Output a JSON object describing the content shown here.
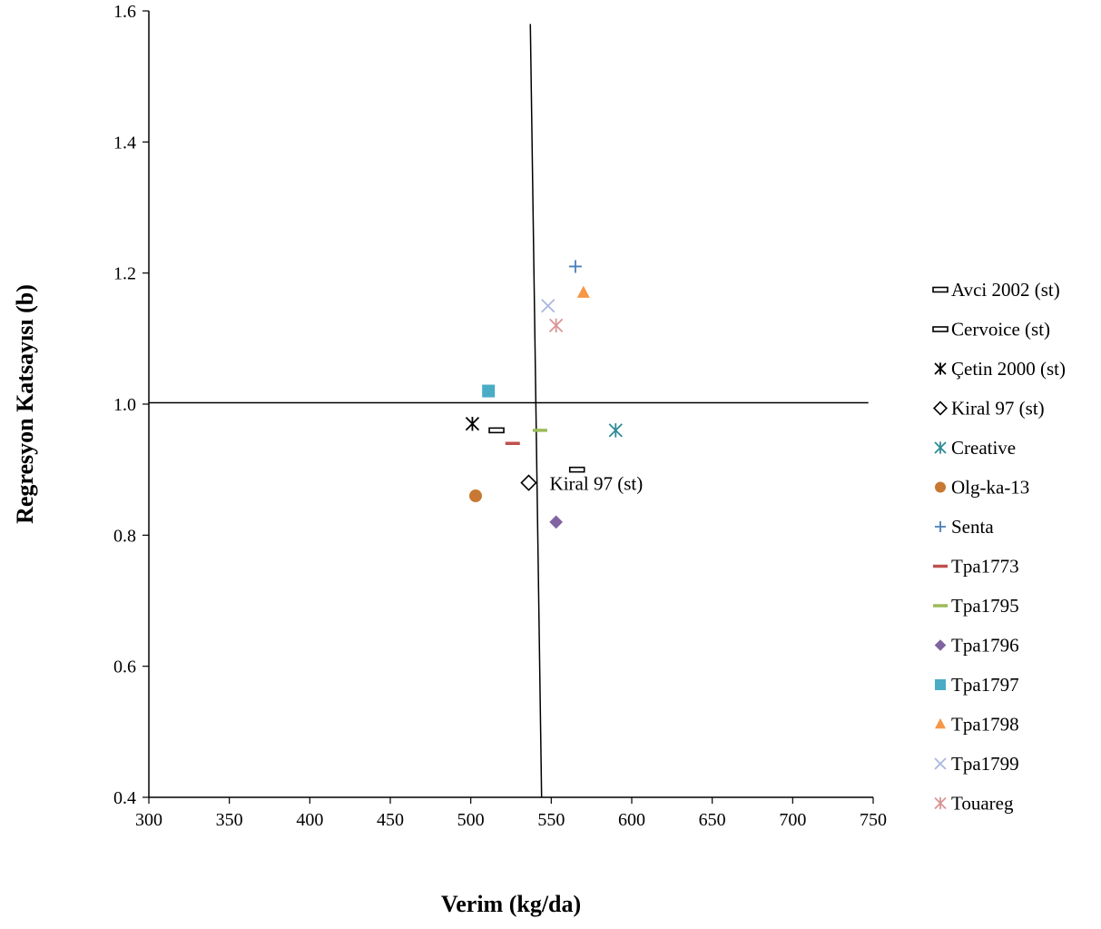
{
  "chart_data": {
    "type": "scatter",
    "xlabel": "Verim (kg/da)",
    "ylabel": "Regresyon Katsayısı (b)",
    "xlim": [
      300,
      750
    ],
    "ylim": [
      0.4,
      1.6
    ],
    "xticks": [
      "300",
      "350",
      "400",
      "450",
      "500",
      "550",
      "600",
      "650",
      "700",
      "750"
    ],
    "yticks": [
      "0.4",
      "0.6",
      "0.8",
      "1.0",
      "1.2",
      "1.4",
      "1.6"
    ],
    "grid": false,
    "legend_position": "right",
    "reference_lines": [
      {
        "from": [
          300,
          1.002
        ],
        "to": [
          747,
          1.002
        ]
      },
      {
        "from": [
          537,
          1.58
        ],
        "to": [
          544,
          0.4
        ]
      }
    ],
    "series": [
      {
        "name": "Avci 2002 (st)",
        "marker": "open-dash",
        "color": "#000000",
        "points": [
          [
            566,
            0.9
          ]
        ]
      },
      {
        "name": "Cervoice (st)",
        "marker": "open-dash",
        "color": "#000000",
        "points": [
          [
            516,
            0.96
          ]
        ]
      },
      {
        "name": "Çetin 2000 (st)",
        "marker": "asterisk",
        "color": "#000000",
        "points": [
          [
            501,
            0.97
          ]
        ]
      },
      {
        "name": "Kiral 97 (st)",
        "marker": "open-diamond",
        "color": "#000000",
        "points": [
          [
            536,
            0.88
          ]
        ]
      },
      {
        "name": "Creative",
        "marker": "asterisk",
        "color": "#2E8B96",
        "points": [
          [
            590,
            0.96
          ]
        ]
      },
      {
        "name": "Olg-ka-13",
        "marker": "circle",
        "color": "#C87832",
        "points": [
          [
            503,
            0.86
          ]
        ]
      },
      {
        "name": "Senta",
        "marker": "plus",
        "color": "#4A7EBB",
        "points": [
          [
            565,
            1.21
          ]
        ]
      },
      {
        "name": "Tpa1773",
        "marker": "dash",
        "color": "#C0504D",
        "points": [
          [
            526,
            0.94
          ]
        ]
      },
      {
        "name": "Tpa1795",
        "marker": "dash",
        "color": "#9BBB59",
        "points": [
          [
            543,
            0.96
          ]
        ]
      },
      {
        "name": "Tpa1796",
        "marker": "diamond",
        "color": "#8064A2",
        "points": [
          [
            553,
            0.82
          ]
        ]
      },
      {
        "name": "Tpa1797",
        "marker": "square",
        "color": "#4BACC6",
        "points": [
          [
            511,
            1.02
          ]
        ]
      },
      {
        "name": "Tpa1798",
        "marker": "triangle",
        "color": "#F79646",
        "points": [
          [
            570,
            1.17
          ]
        ]
      },
      {
        "name": "Tpa1799",
        "marker": "x",
        "color": "#A9B8DD",
        "points": [
          [
            548,
            1.15
          ]
        ]
      },
      {
        "name": "Touareg",
        "marker": "asterisk",
        "color": "#D99594",
        "points": [
          [
            553,
            1.12
          ]
        ]
      }
    ],
    "annotations": [
      {
        "text": "Kiral 97 (st)",
        "x": 549,
        "y": 0.88
      }
    ]
  }
}
